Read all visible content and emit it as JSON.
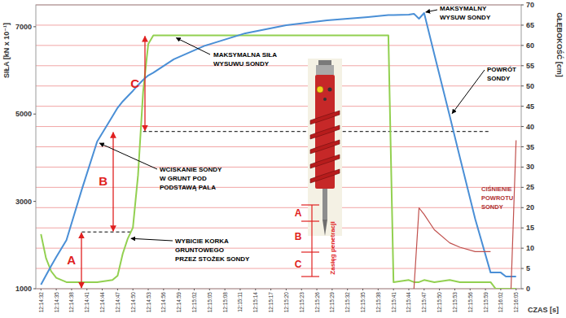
{
  "chart_data": {
    "type": "line",
    "x_label": "CZAS [s]",
    "y_label": "SIŁA [kN x 10⁻¹]",
    "y2_label": "GŁĘBOKOŚĆ [cm]",
    "x": [
      44072,
      44073,
      44074,
      44075,
      44077,
      44080,
      44083,
      44086,
      44087,
      44088,
      44089,
      44090,
      44091,
      44092,
      44093,
      44094,
      44098,
      44104,
      44112,
      44120,
      44128,
      44136,
      44140,
      44141,
      44144,
      44145,
      44146,
      44147,
      44149,
      44152,
      44154,
      44157,
      44160,
      44161,
      44162,
      44163,
      44164,
      44165
    ],
    "xlim": [
      44071,
      44166
    ],
    "xticks": [
      {
        "value": 44072,
        "label": "12:14:32"
      },
      {
        "value": 44075,
        "label": "12:14:35"
      },
      {
        "value": 44078,
        "label": "12:14:38"
      },
      {
        "value": 44081,
        "label": "12:14:41"
      },
      {
        "value": 44084,
        "label": "12:14:44"
      },
      {
        "value": 44087,
        "label": "12:14:47"
      },
      {
        "value": 44090,
        "label": "12:14:50"
      },
      {
        "value": 44093,
        "label": "12:14:53"
      },
      {
        "value": 44096,
        "label": "12:14:56"
      },
      {
        "value": 44099,
        "label": "12:14:59"
      },
      {
        "value": 44102,
        "label": "12:15:02"
      },
      {
        "value": 44105,
        "label": "12:15:05"
      },
      {
        "value": 44108,
        "label": "12:15:08"
      },
      {
        "value": 44111,
        "label": "12:15:11"
      },
      {
        "value": 44114,
        "label": "12:15:14"
      },
      {
        "value": 44117,
        "label": "12:15:17"
      },
      {
        "value": 44120,
        "label": "12:15:20"
      },
      {
        "value": 44123,
        "label": "12:15:23"
      },
      {
        "value": 44126,
        "label": "12:15:26"
      },
      {
        "value": 44129,
        "label": "12:15:29"
      },
      {
        "value": 44132,
        "label": "12:15:32"
      },
      {
        "value": 44135,
        "label": "12:15:35"
      },
      {
        "value": 44138,
        "label": "12:15:38"
      },
      {
        "value": 44141,
        "label": "12:15:41"
      },
      {
        "value": 44144,
        "label": "12:15:44"
      },
      {
        "value": 44147,
        "label": "12:15:47"
      },
      {
        "value": 44150,
        "label": "12:15:50"
      },
      {
        "value": 44153,
        "label": "12:15:53"
      },
      {
        "value": 44156,
        "label": "12:15:56"
      },
      {
        "value": 44159,
        "label": "12:15:59"
      },
      {
        "value": 44162,
        "label": "12:16:02"
      },
      {
        "value": 44165,
        "label": "12:16:05"
      }
    ],
    "ylim": [
      1000,
      7500
    ],
    "yticks": [
      1000,
      3000,
      5000,
      7000
    ],
    "y2lim": [
      0,
      70
    ],
    "y2ticks": [
      0,
      5,
      10,
      15,
      20,
      25,
      30,
      35,
      40,
      45,
      50,
      55,
      60,
      65,
      70
    ],
    "grid": true,
    "series": [
      {
        "color": "#92d050",
        "values": [
          2250,
          1700,
          1400,
          1250,
          1150,
          1150,
          1150,
          1200,
          1300,
          1800,
          2150,
          2400,
          3600,
          5500,
          6600,
          6800,
          6800,
          6800,
          6800,
          6800,
          6800,
          6800,
          6800,
          1150,
          1200,
          1150,
          1150,
          1200,
          1150,
          1200,
          1150,
          1150,
          1150,
          1000,
          1000,
          1000,
          1000,
          1000
        ]
      },
      {
        "color": "#4a8fd6",
        "axis": "y2",
        "values": [
          1,
          3.3,
          5.6,
          7.8,
          12,
          24.5,
          36.3,
          42.5,
          44.6,
          46.2,
          47.5,
          48.8,
          50.2,
          51.5,
          52.6,
          53.3,
          56.6,
          59.9,
          63,
          65,
          66.2,
          67,
          67.5,
          67.5,
          67.6,
          67.8,
          66.6,
          68,
          57.8,
          42.6,
          32.4,
          17.2,
          4,
          4,
          4,
          3,
          3,
          3
        ]
      },
      {
        "color": "#c0504d",
        "values": [
          null,
          null,
          null,
          null,
          null,
          null,
          null,
          null,
          null,
          null,
          null,
          null,
          null,
          null,
          null,
          null,
          null,
          null,
          null,
          null,
          null,
          null,
          null,
          null,
          null,
          1000,
          2850,
          2700,
          2350,
          2050,
          1950,
          1850,
          1850,
          null,
          null,
          null,
          1000,
          4400
        ]
      }
    ],
    "hlines": [
      {
        "value": 2300,
        "x": [
          44080,
          44090
        ],
        "line_style": "dashed"
      },
      {
        "value": 4600,
        "x": [
          44092,
          44160
        ],
        "line_style": "dashed"
      }
    ],
    "markers": [
      "A",
      "B",
      "C"
    ],
    "annotations": [
      {
        "lines": [
          "MAKSYMALNY",
          "WYSUW SONDY"
        ]
      },
      {
        "lines": [
          "POWRÓT",
          "SONDY"
        ]
      },
      {
        "lines": [
          "MAKSYMALNA SIŁA",
          "WYSUWU SONDY"
        ]
      },
      {
        "lines": [
          "WCISKANIE SONDY",
          "W GRUNT POD",
          "PODSTAWĄ PALA"
        ]
      },
      {
        "lines": [
          "WYBICIE KORKA",
          "GRUNTOWEGO",
          "PRZEZ STOŻEK SONDY"
        ]
      },
      {
        "lines": [
          "CIŚNIENIE",
          "POWROTU",
          "SONDY"
        ]
      }
    ],
    "probe": {
      "labels": [
        "A",
        "B",
        "C"
      ],
      "caption": "Zasięg penetracji"
    }
  }
}
